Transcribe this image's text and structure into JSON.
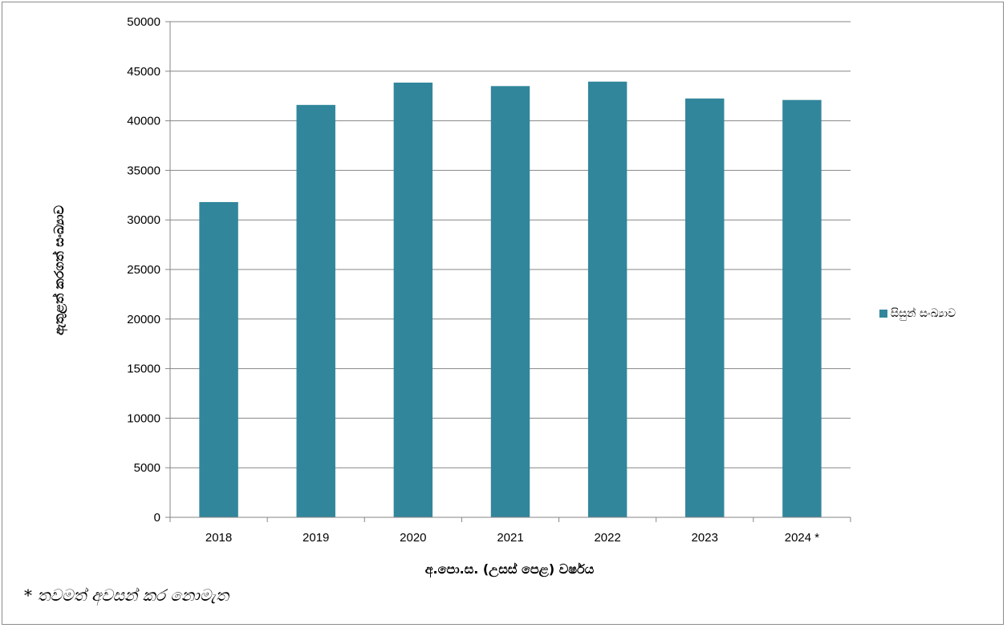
{
  "chart_data": {
    "type": "bar",
    "categories": [
      "2018",
      "2019",
      "2020",
      "2021",
      "2022",
      "2023",
      "2024 *"
    ],
    "series": [
      {
        "name": "සිසුන් සංඛ්‍යාව",
        "values": [
          31800,
          41600,
          43850,
          43500,
          43950,
          42250,
          42100
        ],
        "color": "#31869b"
      }
    ],
    "ylim": [
      0,
      50000
    ],
    "yticks": [
      0,
      5000,
      10000,
      15000,
      20000,
      25000,
      30000,
      35000,
      40000,
      45000,
      50000
    ],
    "xlabel": "අ.පො.ස. (උසස් පෙළ) වර්ෂය",
    "ylabel": "ඇතුළත් කරගත් සංඛ්‍යාව",
    "legend_position": "right",
    "grid": true,
    "gridline_color": "#868686",
    "footnote": "* තවමත් අවසන් කර නොමැත"
  }
}
